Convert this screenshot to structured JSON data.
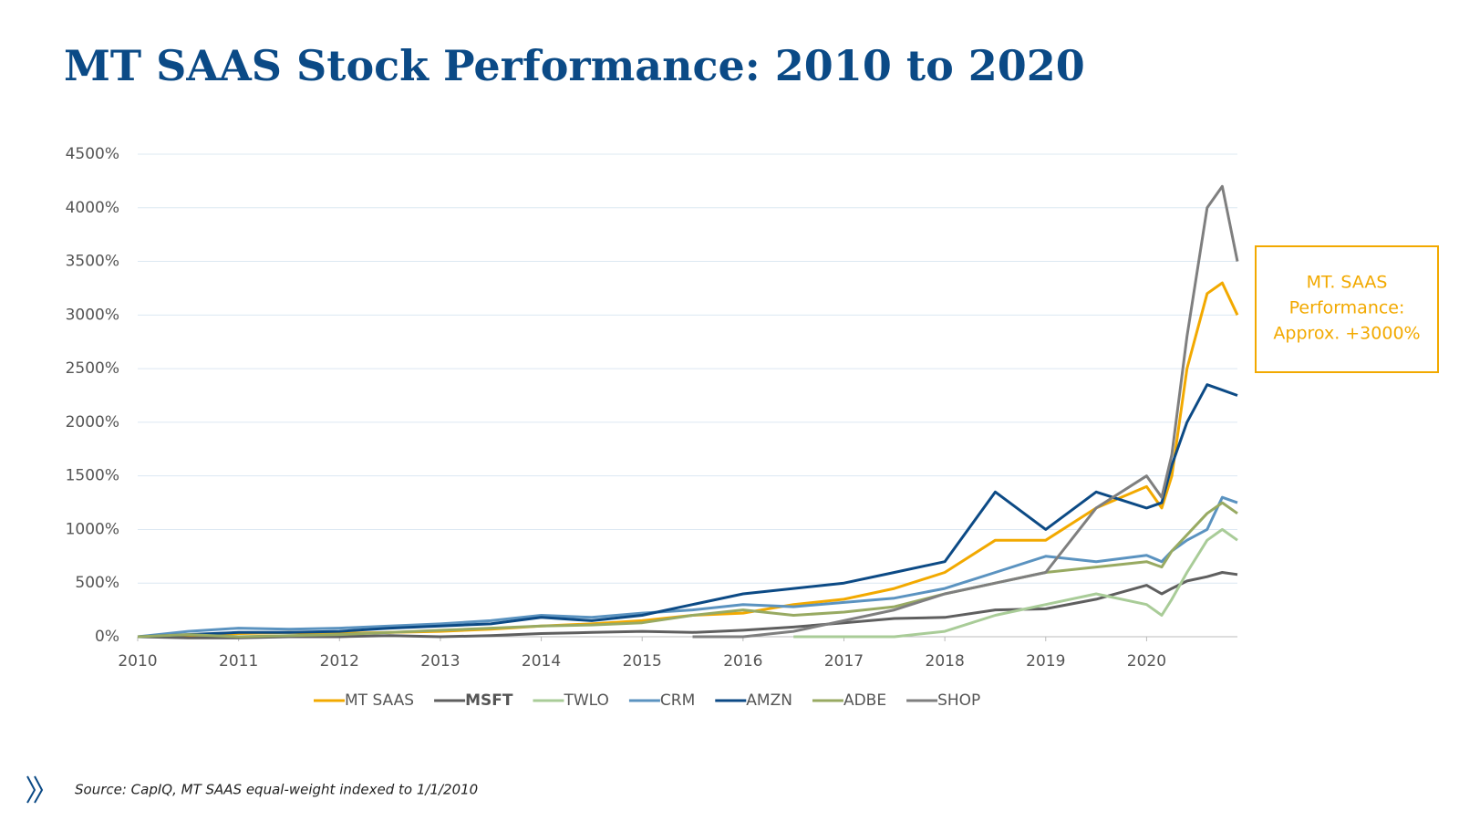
{
  "chart_data": {
    "type": "line",
    "title": "MT SAAS Stock Performance: 2010 to 2020",
    "x": [
      2010,
      2010.5,
      2011,
      2011.5,
      2012,
      2012.5,
      2013,
      2013.5,
      2014,
      2014.5,
      2015,
      2015.5,
      2016,
      2016.5,
      2017,
      2017.5,
      2018,
      2018.5,
      2019,
      2019.5,
      2020,
      2020.15,
      2020.25,
      2020.4,
      2020.6,
      2020.75,
      2020.9
    ],
    "xlim": [
      2010,
      2020.9
    ],
    "xticks": [
      2010,
      2011,
      2012,
      2013,
      2014,
      2015,
      2016,
      2017,
      2018,
      2019,
      2020
    ],
    "ylim": [
      0,
      4500
    ],
    "yticks": [
      {
        "value": 0,
        "label": "0%"
      },
      {
        "value": 500,
        "label": "500%"
      },
      {
        "value": 1000,
        "label": "1000%"
      },
      {
        "value": 1500,
        "label": "1500%"
      },
      {
        "value": 2000,
        "label": "2000%"
      },
      {
        "value": 2500,
        "label": "2500%"
      },
      {
        "value": 3000,
        "label": "3000%"
      },
      {
        "value": 3500,
        "label": "3500%"
      },
      {
        "value": 4000,
        "label": "4000%"
      },
      {
        "value": 4500,
        "label": "4500%"
      }
    ],
    "grid": true,
    "legend": "bottom",
    "series": [
      {
        "name": "MT SAAS",
        "color": "#f2a900",
        "values": [
          0,
          10,
          30,
          40,
          30,
          40,
          50,
          70,
          100,
          120,
          150,
          200,
          220,
          300,
          350,
          450,
          600,
          900,
          900,
          1200,
          1400,
          1200,
          1500,
          2500,
          3200,
          3300,
          3000
        ]
      },
      {
        "name": "MSFT",
        "color": "#5f5f5f",
        "bold": true,
        "values": [
          0,
          -10,
          -10,
          0,
          0,
          10,
          0,
          10,
          30,
          40,
          50,
          40,
          60,
          90,
          130,
          170,
          180,
          250,
          260,
          350,
          480,
          400,
          450,
          520,
          560,
          600,
          580
        ]
      },
      {
        "name": "TWLO",
        "color": "#a9cc98",
        "values": [
          null,
          null,
          null,
          null,
          null,
          null,
          null,
          null,
          null,
          null,
          null,
          null,
          null,
          0,
          0,
          0,
          50,
          200,
          300,
          400,
          300,
          200,
          350,
          600,
          900,
          1000,
          900
        ]
      },
      {
        "name": "CRM",
        "color": "#5b93c0",
        "values": [
          0,
          50,
          80,
          70,
          80,
          100,
          120,
          150,
          200,
          180,
          220,
          250,
          300,
          280,
          320,
          360,
          450,
          600,
          750,
          700,
          760,
          700,
          800,
          900,
          1000,
          1300,
          1250
        ]
      },
      {
        "name": "AMZN",
        "color": "#0c4a85",
        "values": [
          0,
          20,
          40,
          40,
          50,
          80,
          100,
          120,
          180,
          150,
          200,
          300,
          400,
          450,
          500,
          600,
          700,
          1350,
          1000,
          1350,
          1200,
          1250,
          1600,
          2000,
          2350,
          2300,
          2250
        ]
      },
      {
        "name": "ADBE",
        "color": "#98aa62",
        "values": [
          0,
          20,
          0,
          10,
          20,
          40,
          60,
          80,
          100,
          110,
          130,
          200,
          250,
          200,
          230,
          280,
          400,
          500,
          600,
          650,
          700,
          650,
          800,
          950,
          1150,
          1250,
          1150
        ]
      },
      {
        "name": "SHOP",
        "color": "#7f7f7f",
        "values": [
          null,
          null,
          null,
          null,
          null,
          null,
          null,
          null,
          null,
          null,
          null,
          0,
          0,
          50,
          150,
          250,
          400,
          500,
          600,
          1200,
          1500,
          1300,
          1700,
          2800,
          4000,
          4200,
          3500
        ]
      }
    ],
    "annotation": {
      "lines": [
        "MT. SAAS",
        "Performance:",
        "Approx. +3000%"
      ],
      "color": "#f2a900"
    }
  },
  "footer": {
    "source": "Source: CapIQ, MT SAAS  equal-weight indexed to 1/1/2010"
  }
}
